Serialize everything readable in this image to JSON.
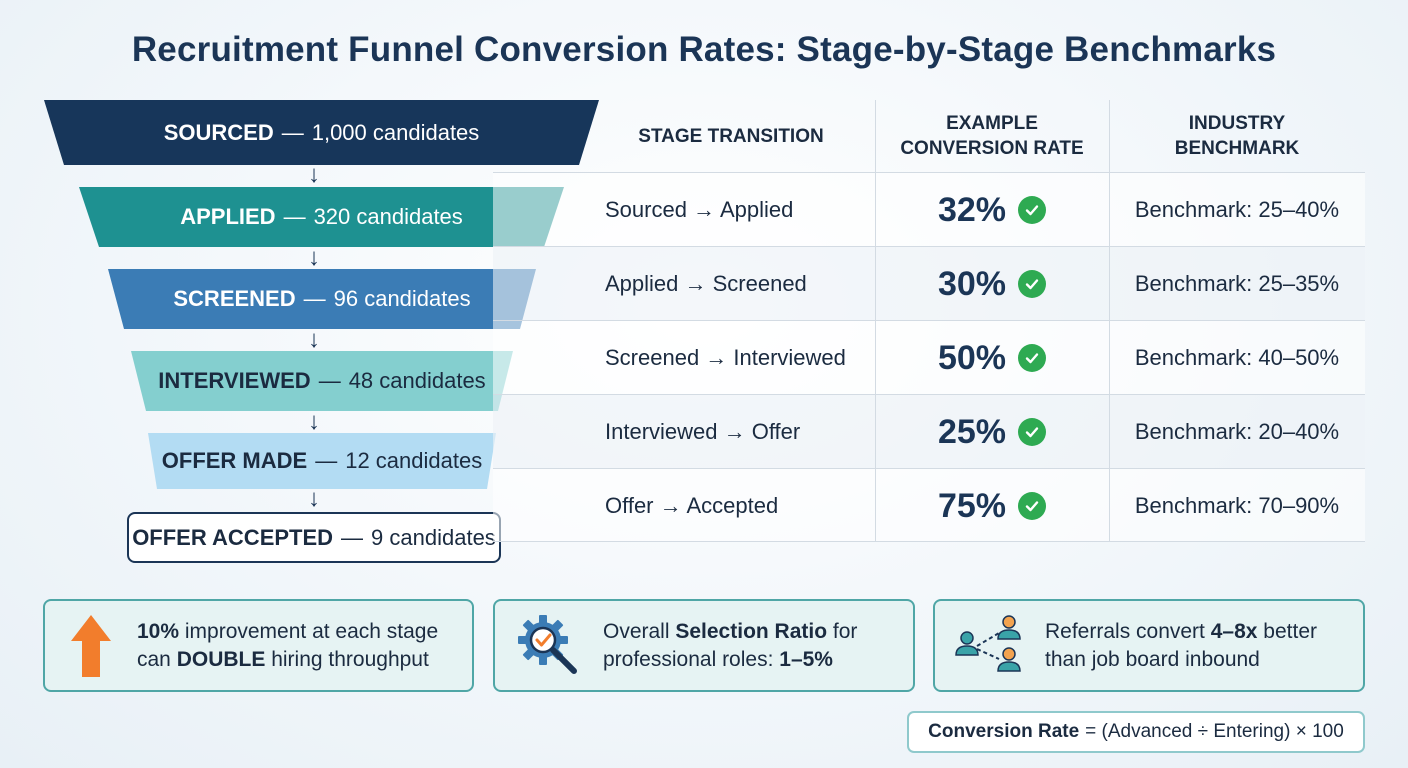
{
  "title": "Recruitment Funnel Conversion Rates: Stage-by-Stage Benchmarks",
  "funnel": {
    "separator": "—",
    "stages": [
      {
        "name": "SOURCED",
        "count": "1,000 candidates",
        "color": "#17365a",
        "text_color": "#ffffff"
      },
      {
        "name": "APPLIED",
        "count": "320 candidates",
        "color": "#1e9191",
        "text_color": "#ffffff"
      },
      {
        "name": "SCREENED",
        "count": "96 candidates",
        "color": "#3b7cb5",
        "text_color": "#ffffff"
      },
      {
        "name": "INTERVIEWED",
        "count": "48 candidates",
        "color": "#84cfcf",
        "text_color": "#1b2b40"
      },
      {
        "name": "OFFER MADE",
        "count": "12 candidates",
        "color": "#b3dcf3",
        "text_color": "#1b2b40"
      },
      {
        "name": "OFFER ACCEPTED",
        "count": "9 candidates",
        "color": "#ffffff",
        "text_color": "#1b2b40"
      }
    ]
  },
  "table": {
    "headers": {
      "transition": "STAGE TRANSITION",
      "rate_line1": "EXAMPLE",
      "rate_line2": "CONVERSION RATE",
      "bench_line1": "INDUSTRY",
      "bench_line2": "BENCHMARK"
    },
    "rows": [
      {
        "transition": "Sourced → Applied",
        "rate": "32%",
        "benchmark": "Benchmark: 25–40%"
      },
      {
        "transition": "Applied → Screened",
        "rate": "30%",
        "benchmark": "Benchmark: 25–35%"
      },
      {
        "transition": "Screened → Interviewed",
        "rate": "50%",
        "benchmark": "Benchmark: 40–50%"
      },
      {
        "transition": "Interviewed → Offer",
        "rate": "25%",
        "benchmark": "Benchmark: 20–40%"
      },
      {
        "transition": "Offer → Accepted",
        "rate": "75%",
        "benchmark": "Benchmark: 70–90%"
      }
    ]
  },
  "cards": [
    {
      "icon": "up-arrow-icon",
      "pre1": "10%",
      "text1": " improvement at each stage",
      "text2a": "can ",
      "bold2": "DOUBLE",
      "text2b": " hiring throughput"
    },
    {
      "icon": "gear-magnifier-icon",
      "text1a": "Overall ",
      "bold1": "Selection Ratio",
      "text1b": " for",
      "text2a": "professional roles: ",
      "bold2": "1–5%"
    },
    {
      "icon": "referral-network-icon",
      "text1a": "Referrals convert ",
      "bold1": "4–8x",
      "text1b": " better",
      "text2": "than job board inbound"
    }
  ],
  "formula": {
    "label": "Conversion Rate",
    "expression": "= (Advanced ÷ Entering) × 100"
  },
  "colors": {
    "accent_green": "#2eaa52",
    "up_arrow": "#f27d2c",
    "navy": "#1b3556",
    "teal_border": "#4fa6a6"
  }
}
